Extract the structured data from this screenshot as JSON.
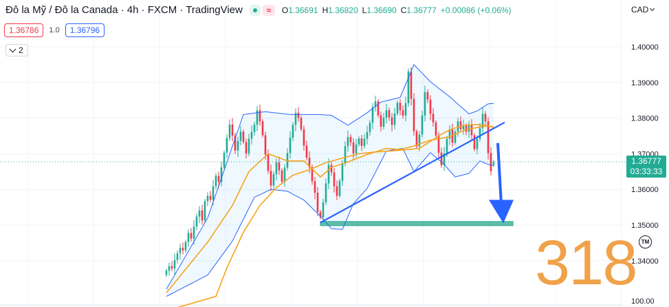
{
  "header": {
    "title": "Đô la Mỹ / Đô la Canada · 4h · FXCM · TradingView",
    "ohlc": {
      "o_label": "O",
      "o": "1.36691",
      "h_label": "H",
      "h": "1.36820",
      "l_label": "L",
      "l": "1.36690",
      "c_label": "C",
      "c": "1.36777",
      "change": "+0.00086 (+0.06%)"
    },
    "status_icons": [
      "market-open-dot-icon",
      "wave-icon"
    ],
    "wave_glyph": "≈"
  },
  "trade": {
    "sell_price": "1.36786",
    "spread": "1.0",
    "buy_price": "1.36796"
  },
  "indicators_toggle": {
    "count": "2"
  },
  "currency": "CAD",
  "last_price": {
    "price": "1.36777",
    "countdown": "03:33:33"
  },
  "watermark": {
    "text": "318",
    "mark": "TM"
  },
  "colors": {
    "up": "#22ab94",
    "down": "#f23645",
    "band": "#2962ff",
    "ma": "#f7a21b",
    "trendline": "#2962ff",
    "support": "#26a69a",
    "arrow": "#2962ff"
  },
  "chart_data": {
    "type": "candlestick",
    "symbol": "USDCAD",
    "timeframe": "4h",
    "y_axis_ticks": [
      "1.40000",
      "1.39000",
      "1.38000",
      "1.37000",
      "1.36000",
      "1.35000",
      "1.34000",
      "100.00"
    ],
    "ylim": [
      1.3306,
      1.4054
    ],
    "last_close": 1.36777,
    "candles_close": [
      1.3372,
      1.3385,
      1.3378,
      1.3402,
      1.3421,
      1.3436,
      1.3429,
      1.3453,
      1.3478,
      1.3462,
      1.3496,
      1.3524,
      1.3541,
      1.3513,
      1.3567,
      1.3582,
      1.3571,
      1.3609,
      1.3638,
      1.3621,
      1.3662,
      1.3703,
      1.3744,
      1.3782,
      1.3751,
      1.3709,
      1.3736,
      1.3762,
      1.3733,
      1.3701,
      1.3742,
      1.3761,
      1.3782,
      1.3822,
      1.3791,
      1.3752,
      1.3698,
      1.3652,
      1.3611,
      1.3643,
      1.3676,
      1.3653,
      1.3622,
      1.3661,
      1.3702,
      1.3745,
      1.3781,
      1.3815,
      1.3801,
      1.3769,
      1.3723,
      1.3689,
      1.3662,
      1.3623,
      1.3591,
      1.3537,
      1.3522,
      1.3564,
      1.3617,
      1.3669,
      1.3648,
      1.3609,
      1.3582,
      1.3624,
      1.3673,
      1.3721,
      1.3747,
      1.3732,
      1.3701,
      1.3726,
      1.3743,
      1.3722,
      1.3742,
      1.3761,
      1.3787,
      1.3831,
      1.3847,
      1.3808,
      1.3776,
      1.3801,
      1.3822,
      1.3802,
      1.3781,
      1.3813,
      1.3843,
      1.3822,
      1.3807,
      1.3842,
      1.3931,
      1.3854,
      1.3763,
      1.3721,
      1.3754,
      1.3807,
      1.3873,
      1.3852,
      1.3812,
      1.3788,
      1.3751,
      1.3703,
      1.3668,
      1.3701,
      1.3742,
      1.3768,
      1.3731,
      1.3762,
      1.3791,
      1.3769,
      1.3778,
      1.3762,
      1.3781,
      1.3752,
      1.3713,
      1.3742,
      1.3772,
      1.3812,
      1.3791,
      1.3702,
      1.3651,
      1.3677
    ],
    "bollinger": {
      "upper": [
        [
          0,
          1.332
        ],
        [
          15,
          1.352
        ],
        [
          28,
          1.381
        ],
        [
          36,
          1.3818
        ],
        [
          45,
          1.381
        ],
        [
          55,
          1.381
        ],
        [
          60,
          1.3808
        ],
        [
          66,
          1.378
        ],
        [
          73,
          1.3815
        ],
        [
          78,
          1.3845
        ],
        [
          85,
          1.3858
        ],
        [
          90,
          1.395
        ],
        [
          96,
          1.3902
        ],
        [
          103,
          1.386
        ],
        [
          110,
          1.3812
        ],
        [
          113,
          1.382
        ],
        [
          117,
          1.384
        ],
        [
          120,
          1.3842
        ]
      ],
      "middle": [
        [
          0,
          1.331
        ],
        [
          15,
          1.3452
        ],
        [
          24,
          1.3555
        ],
        [
          30,
          1.365
        ],
        [
          37,
          1.37
        ],
        [
          44,
          1.368
        ],
        [
          50,
          1.368
        ],
        [
          56,
          1.3635
        ],
        [
          60,
          1.3662
        ],
        [
          66,
          1.3677
        ],
        [
          73,
          1.3698
        ],
        [
          80,
          1.3715
        ],
        [
          85,
          1.3712
        ],
        [
          90,
          1.3722
        ],
        [
          96,
          1.3738
        ],
        [
          103,
          1.3748
        ],
        [
          109,
          1.3768
        ],
        [
          114,
          1.3775
        ],
        [
          117,
          1.3778
        ],
        [
          120,
          1.3775
        ]
      ],
      "lower": [
        [
          0,
          1.33
        ],
        [
          15,
          1.336
        ],
        [
          24,
          1.3455
        ],
        [
          32,
          1.3578
        ],
        [
          38,
          1.36
        ],
        [
          44,
          1.3595
        ],
        [
          50,
          1.357
        ],
        [
          56,
          1.3525
        ],
        [
          60,
          1.349
        ],
        [
          64,
          1.3488
        ],
        [
          68,
          1.356
        ],
        [
          73,
          1.3603
        ],
        [
          80,
          1.3708
        ],
        [
          86,
          1.3715
        ],
        [
          90,
          1.365
        ],
        [
          96,
          1.3703
        ],
        [
          101,
          1.367
        ],
        [
          105,
          1.3635
        ],
        [
          110,
          1.3645
        ],
        [
          114,
          1.368
        ],
        [
          117,
          1.367
        ],
        [
          120,
          1.3665
        ]
      ]
    },
    "moving_average": [
      [
        0,
        1.326
      ],
      [
        18,
        1.33
      ],
      [
        22,
        1.338
      ],
      [
        28,
        1.348
      ],
      [
        34,
        1.3555
      ],
      [
        40,
        1.3605
      ],
      [
        46,
        1.364
      ],
      [
        52,
        1.3655
      ],
      [
        58,
        1.3675
      ],
      [
        64,
        1.3688
      ],
      [
        70,
        1.37
      ],
      [
        76,
        1.3705
      ],
      [
        82,
        1.3708
      ],
      [
        88,
        1.3712
      ],
      [
        92,
        1.3715
      ],
      [
        96,
        1.3735
      ],
      [
        100,
        1.3755
      ],
      [
        104,
        1.377
      ],
      [
        108,
        1.3779
      ],
      [
        112,
        1.3782
      ],
      [
        116,
        1.378
      ],
      [
        120,
        1.3772
      ]
    ],
    "trendline": [
      [
        56,
        1.3507
      ],
      [
        123,
        1.3788
      ]
    ],
    "support_zone": {
      "x": [
        56,
        126
      ],
      "y": [
        1.3502,
        1.351
      ]
    },
    "projection_arrow": {
      "from": [
        120.5,
        1.373
      ],
      "to": [
        122.5,
        1.3505
      ]
    }
  }
}
